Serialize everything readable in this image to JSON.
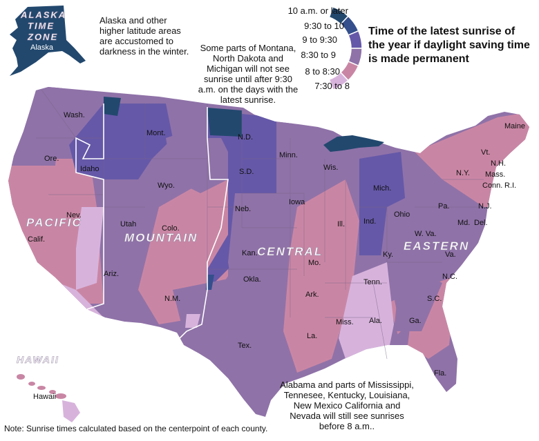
{
  "colors": {
    "c10": "#22486e",
    "c930": "#344f8c",
    "c9": "#6558a8",
    "c830": "#8f72a8",
    "c8": "#c986a4",
    "c730": "#d7b3dc"
  },
  "legend": {
    "items": [
      {
        "label": "10 a.m. or later",
        "color": "#22486e"
      },
      {
        "label": "9:30 to 10",
        "color": "#344f8c"
      },
      {
        "label": "9 to 9:30",
        "color": "#6558a8"
      },
      {
        "label": "8:30 to 9",
        "color": "#8f72a8"
      },
      {
        "label": "8 to 8:30",
        "color": "#c986a4"
      },
      {
        "label": "7:30 to 8",
        "color": "#d7b3dc"
      }
    ]
  },
  "title": "Time of the latest sunrise of the year if daylight saving time is made permanent",
  "annotations": {
    "alaska": "Alaska and other higher latitude areas are accustomed to darkness in the winter.",
    "montana": "Some parts of Montana, North Dakota and Michigan will not see sunrise until after 9:30 a.m. on the days with the latest sunrise.",
    "alabama": "Alabama and parts of Mississippi, Tennesee, Kentucky, Louisiana, New Mexico California and Nevada will still see sunrises before 8 a.m.."
  },
  "footnote": "Note: Sunrise times calculated based on the centerpoint of each county.",
  "zones": {
    "alaska_line1": "ALASKA",
    "alaska_line2": "TIME",
    "alaska_line3": "ZONE",
    "pacific": "PACIFIC",
    "mountain": "MOUNTAIN",
    "central": "CENTRAL",
    "eastern": "EASTERN",
    "hawaii": "HAWAII"
  },
  "states": {
    "alaska": "Alaska",
    "hawaii": "Hawaii",
    "wash": "Wash.",
    "ore": "Ore.",
    "calif": "Calif.",
    "nev": "Nev.",
    "idaho": "Idaho",
    "mont": "Mont.",
    "wyo": "Wyo.",
    "utah": "Utah",
    "colo": "Colo.",
    "ariz": "Ariz.",
    "nm": "N.M.",
    "nd": "N.D.",
    "sd": "S.D.",
    "neb": "Neb.",
    "kan": "Kan.",
    "okla": "Okla.",
    "tex": "Tex.",
    "minn": "Minn.",
    "iowa": "Iowa",
    "mo": "Mo.",
    "ark": "Ark.",
    "la": "La.",
    "wis": "Wis.",
    "ill": "Ill.",
    "mich": "Mich.",
    "ind": "Ind.",
    "ohio": "Ohio",
    "ky": "Ky.",
    "tenn": "Tenn.",
    "miss": "Miss.",
    "ala": "Ala.",
    "ga": "Ga.",
    "fla": "Fla.",
    "sc": "S.C.",
    "nc": "N.C.",
    "va": "Va.",
    "wva": "W. Va.",
    "md": "Md.",
    "del": "Del.",
    "pa": "Pa.",
    "nj": "N.J.",
    "ny": "N.Y.",
    "conn": "Conn.",
    "ri": "R.I.",
    "mass": "Mass.",
    "vt": "Vt.",
    "nh": "N.H.",
    "maine": "Maine"
  }
}
